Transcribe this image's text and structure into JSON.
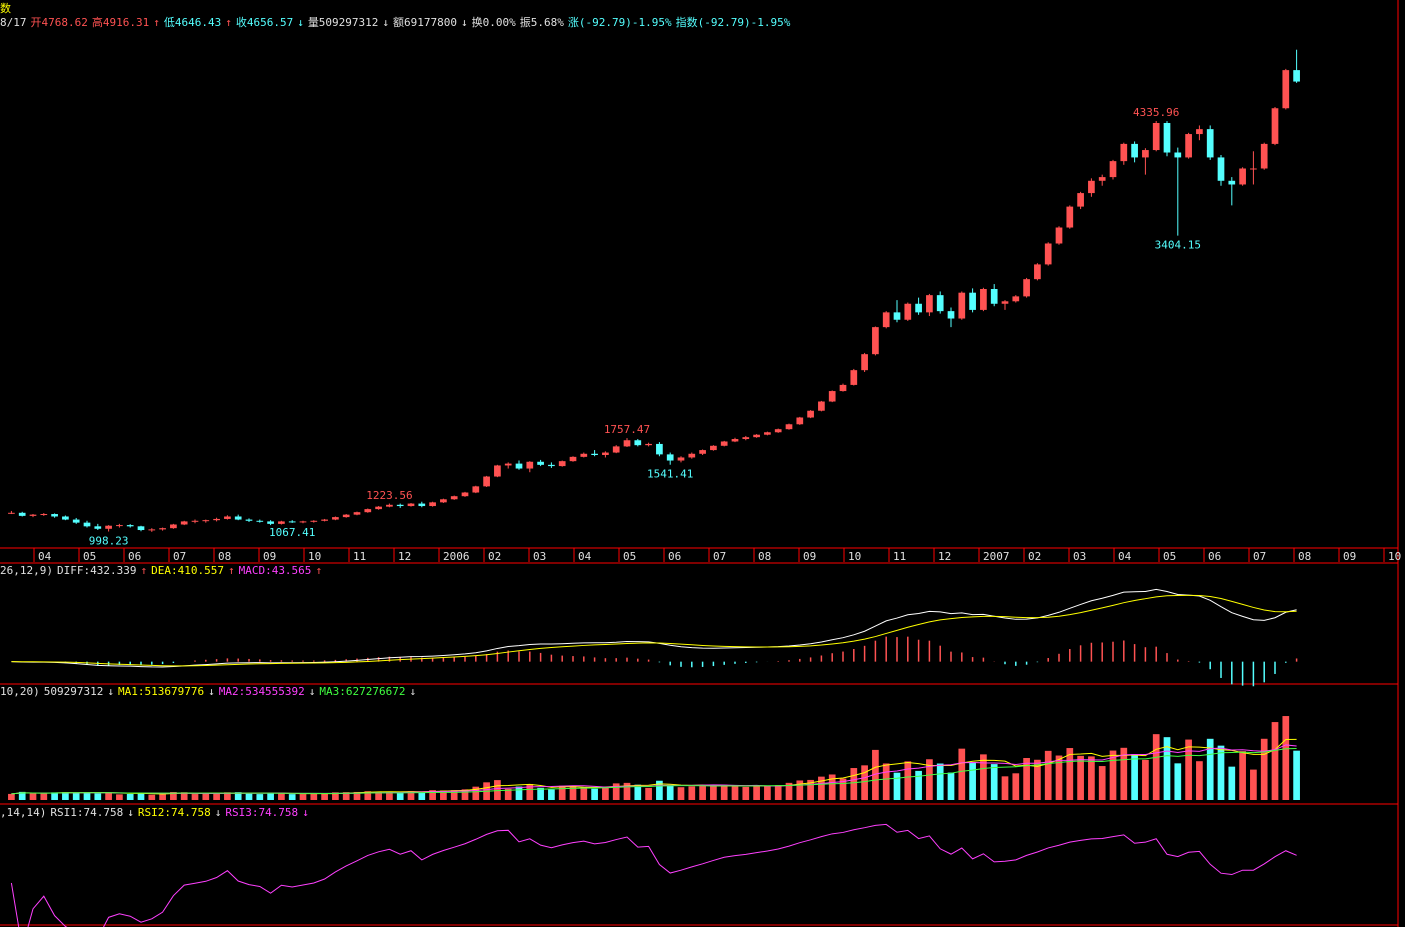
{
  "window": {
    "title_fragment": "数"
  },
  "infobar": {
    "date": "8/17",
    "open": "开4768.62",
    "high": "高4916.31",
    "low": "低4646.43",
    "close": "收4656.57",
    "volume": "量509297312",
    "amount": "额69177800",
    "turnover": "换0.00%",
    "amplitude": "振5.68%",
    "change": "涨(-92.79)-1.95%",
    "index_change": "指数(-92.79)-1.95%"
  },
  "macd_header": {
    "params": "26,12,9)",
    "diff": "DIFF:432.339",
    "dea": "DEA:410.557",
    "macd": "MACD:43.565"
  },
  "vol_header": {
    "params": "10,20)",
    "vol": "509297312",
    "ma1": "MA1:513679776",
    "ma2": "MA2:534555392",
    "ma3": "MA3:627276672"
  },
  "rsi_header": {
    "params": ",14,14)",
    "rsi1": "RSI1:74.758",
    "rsi2": "RSI2:74.758",
    "rsi3": "RSI3:74.758"
  },
  "colors": {
    "up": "#ff5252",
    "down": "#54ffff",
    "grid": "#ff0000",
    "diff": "#ffffff",
    "dea": "#ffff00",
    "ma2": "#ff40ff",
    "ma3": "#40ff40",
    "rsi": "#ff40ff"
  },
  "chart_data": {
    "type": "candlestick",
    "x_labels": [
      "04",
      "05",
      "06",
      "07",
      "08",
      "09",
      "10",
      "11",
      "12",
      "2006",
      "02",
      "03",
      "04",
      "05",
      "06",
      "07",
      "08",
      "09",
      "10",
      "11",
      "12",
      "2007",
      "02",
      "03",
      "04",
      "05",
      "06",
      "07",
      "08",
      "09",
      "10"
    ],
    "annotations": [
      {
        "text": "998.23",
        "type": "low"
      },
      {
        "text": "1223.56",
        "type": "high"
      },
      {
        "text": "1067.41",
        "type": "low"
      },
      {
        "text": "1757.47",
        "type": "high"
      },
      {
        "text": "1541.41",
        "type": "low"
      },
      {
        "text": "4335.96",
        "type": "high"
      },
      {
        "text": "3404.15",
        "type": "low"
      }
    ],
    "ohlc": [
      [
        1150,
        1165,
        1140,
        1150
      ],
      [
        1150,
        1158,
        1120,
        1125
      ],
      [
        1125,
        1140,
        1115,
        1135
      ],
      [
        1135,
        1148,
        1125,
        1140
      ],
      [
        1140,
        1145,
        1110,
        1120
      ],
      [
        1120,
        1128,
        1090,
        1095
      ],
      [
        1095,
        1108,
        1060,
        1070
      ],
      [
        1070,
        1085,
        1030,
        1040
      ],
      [
        1040,
        1060,
        1010,
        1020
      ],
      [
        1020,
        1050,
        998,
        1045
      ],
      [
        1045,
        1060,
        1030,
        1050
      ],
      [
        1050,
        1058,
        1030,
        1040
      ],
      [
        1040,
        1045,
        1000,
        1010
      ],
      [
        1010,
        1025,
        995,
        1015
      ],
      [
        1015,
        1030,
        1005,
        1025
      ],
      [
        1025,
        1060,
        1020,
        1055
      ],
      [
        1055,
        1085,
        1050,
        1080
      ],
      [
        1080,
        1095,
        1065,
        1085
      ],
      [
        1085,
        1095,
        1070,
        1090
      ],
      [
        1090,
        1110,
        1080,
        1100
      ],
      [
        1100,
        1130,
        1095,
        1120
      ],
      [
        1120,
        1135,
        1090,
        1095
      ],
      [
        1095,
        1105,
        1075,
        1085
      ],
      [
        1085,
        1095,
        1070,
        1080
      ],
      [
        1080,
        1090,
        1050,
        1060
      ],
      [
        1060,
        1085,
        1055,
        1080
      ],
      [
        1080,
        1090,
        1068,
        1075
      ],
      [
        1075,
        1085,
        1065,
        1080
      ],
      [
        1080,
        1090,
        1070,
        1085
      ],
      [
        1085,
        1100,
        1080,
        1095
      ],
      [
        1095,
        1120,
        1090,
        1115
      ],
      [
        1115,
        1140,
        1110,
        1135
      ],
      [
        1135,
        1160,
        1130,
        1155
      ],
      [
        1155,
        1185,
        1150,
        1180
      ],
      [
        1180,
        1205,
        1175,
        1200
      ],
      [
        1200,
        1225,
        1195,
        1215
      ],
      [
        1215,
        1225,
        1190,
        1205
      ],
      [
        1205,
        1230,
        1200,
        1225
      ],
      [
        1225,
        1240,
        1195,
        1205
      ],
      [
        1205,
        1240,
        1200,
        1235
      ],
      [
        1235,
        1265,
        1230,
        1260
      ],
      [
        1260,
        1290,
        1255,
        1285
      ],
      [
        1285,
        1320,
        1280,
        1315
      ],
      [
        1315,
        1370,
        1310,
        1365
      ],
      [
        1365,
        1450,
        1360,
        1445
      ],
      [
        1445,
        1540,
        1440,
        1535
      ],
      [
        1535,
        1560,
        1510,
        1550
      ],
      [
        1550,
        1575,
        1500,
        1510
      ],
      [
        1510,
        1570,
        1480,
        1565
      ],
      [
        1565,
        1580,
        1530,
        1540
      ],
      [
        1540,
        1560,
        1515,
        1530
      ],
      [
        1530,
        1575,
        1525,
        1570
      ],
      [
        1570,
        1610,
        1565,
        1605
      ],
      [
        1605,
        1640,
        1600,
        1630
      ],
      [
        1630,
        1660,
        1610,
        1620
      ],
      [
        1620,
        1650,
        1600,
        1640
      ],
      [
        1640,
        1700,
        1635,
        1690
      ],
      [
        1690,
        1757,
        1685,
        1740
      ],
      [
        1740,
        1750,
        1690,
        1700
      ],
      [
        1700,
        1720,
        1690,
        1710
      ],
      [
        1710,
        1725,
        1610,
        1625
      ],
      [
        1625,
        1640,
        1541,
        1575
      ],
      [
        1575,
        1610,
        1560,
        1600
      ],
      [
        1600,
        1640,
        1590,
        1630
      ],
      [
        1630,
        1665,
        1620,
        1660
      ],
      [
        1660,
        1700,
        1655,
        1695
      ],
      [
        1695,
        1735,
        1690,
        1730
      ],
      [
        1730,
        1760,
        1725,
        1750
      ],
      [
        1750,
        1775,
        1740,
        1765
      ],
      [
        1765,
        1790,
        1760,
        1785
      ],
      [
        1785,
        1810,
        1780,
        1805
      ],
      [
        1805,
        1835,
        1800,
        1830
      ],
      [
        1830,
        1875,
        1825,
        1870
      ],
      [
        1870,
        1930,
        1865,
        1925
      ],
      [
        1925,
        1985,
        1920,
        1980
      ],
      [
        1980,
        2060,
        1975,
        2055
      ],
      [
        2055,
        2145,
        2050,
        2140
      ],
      [
        2140,
        2200,
        2135,
        2190
      ],
      [
        2190,
        2320,
        2185,
        2310
      ],
      [
        2310,
        2450,
        2295,
        2440
      ],
      [
        2440,
        2665,
        2430,
        2660
      ],
      [
        2660,
        2790,
        2650,
        2780
      ],
      [
        2780,
        2880,
        2700,
        2720
      ],
      [
        2720,
        2860,
        2710,
        2850
      ],
      [
        2850,
        2900,
        2760,
        2780
      ],
      [
        2780,
        2930,
        2750,
        2920
      ],
      [
        2920,
        2950,
        2770,
        2790
      ],
      [
        2790,
        2820,
        2660,
        2730
      ],
      [
        2730,
        2950,
        2720,
        2940
      ],
      [
        2940,
        2975,
        2780,
        2800
      ],
      [
        2800,
        2980,
        2790,
        2970
      ],
      [
        2970,
        3010,
        2830,
        2850
      ],
      [
        2850,
        2880,
        2800,
        2870
      ],
      [
        2870,
        2920,
        2860,
        2910
      ],
      [
        2910,
        3060,
        2900,
        3050
      ],
      [
        3050,
        3180,
        3040,
        3170
      ],
      [
        3170,
        3350,
        3160,
        3340
      ],
      [
        3340,
        3480,
        3330,
        3470
      ],
      [
        3470,
        3650,
        3460,
        3640
      ],
      [
        3640,
        3760,
        3620,
        3750
      ],
      [
        3750,
        3870,
        3720,
        3850
      ],
      [
        3850,
        3900,
        3810,
        3880
      ],
      [
        3880,
        4020,
        3860,
        4010
      ],
      [
        4010,
        4160,
        3980,
        4150
      ],
      [
        4150,
        4170,
        4000,
        4040
      ],
      [
        4040,
        4115,
        3900,
        4100
      ],
      [
        4100,
        4336,
        4090,
        4320
      ],
      [
        4320,
        4335,
        4050,
        4080
      ],
      [
        4080,
        4120,
        3404,
        4040
      ],
      [
        4040,
        4240,
        4030,
        4230
      ],
      [
        4230,
        4300,
        4180,
        4270
      ],
      [
        4270,
        4300,
        4020,
        4040
      ],
      [
        4040,
        4060,
        3810,
        3850
      ],
      [
        3850,
        3880,
        3650,
        3820
      ],
      [
        3820,
        3960,
        3810,
        3950
      ],
      [
        3950,
        4090,
        3820,
        3950
      ],
      [
        3950,
        4160,
        3940,
        4150
      ],
      [
        4150,
        4450,
        4140,
        4440
      ],
      [
        4440,
        4760,
        4430,
        4750
      ],
      [
        4750,
        4916,
        4646,
        4657
      ]
    ],
    "price_range": [
      880,
      5060
    ],
    "volume_range": [
      0,
      2300000000
    ],
    "rsi_range": [
      20,
      100
    ],
    "macd_range": [
      -130,
      560
    ]
  }
}
